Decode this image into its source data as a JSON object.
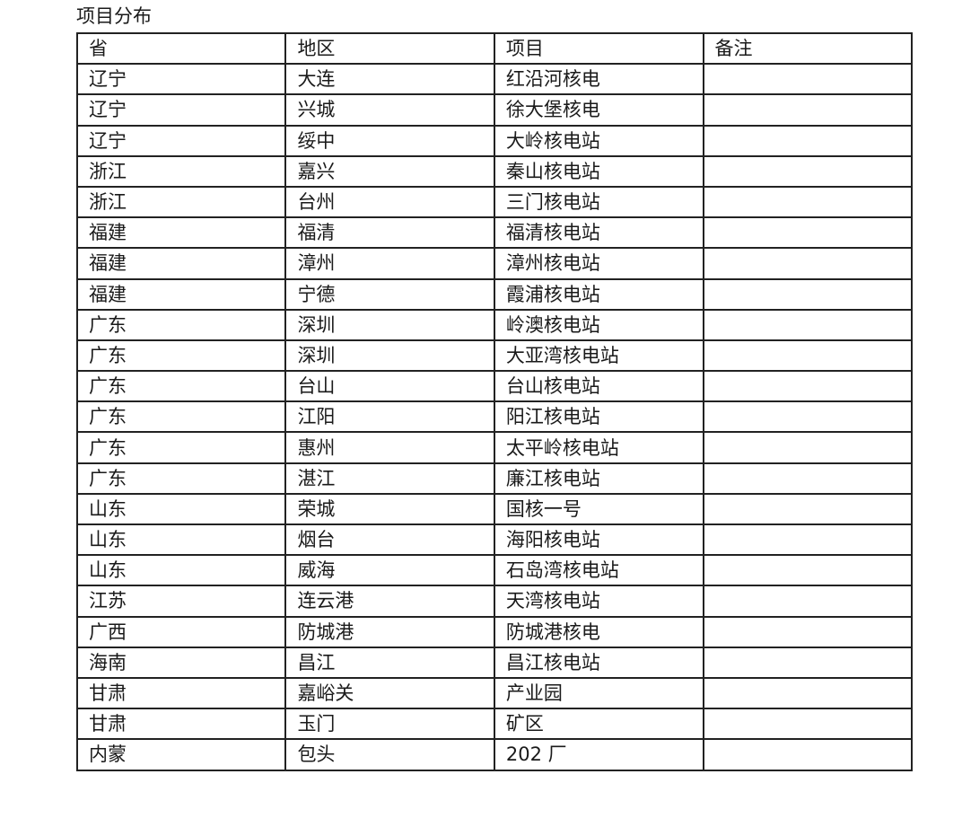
{
  "title": "项目分布",
  "table": {
    "headers": [
      "省",
      "地区",
      "项目",
      "备注"
    ],
    "rows": [
      [
        "辽宁",
        "大连",
        "红沿河核电",
        ""
      ],
      [
        "辽宁",
        "兴城",
        "徐大堡核电",
        ""
      ],
      [
        "辽宁",
        "绥中",
        "大岭核电站",
        ""
      ],
      [
        "浙江",
        "嘉兴",
        "秦山核电站",
        ""
      ],
      [
        "浙江",
        "台州",
        "三门核电站",
        ""
      ],
      [
        "福建",
        "福清",
        "福清核电站",
        ""
      ],
      [
        "福建",
        "漳州",
        "漳州核电站",
        ""
      ],
      [
        "福建",
        "宁德",
        "霞浦核电站",
        ""
      ],
      [
        "广东",
        "深圳",
        "岭澳核电站",
        ""
      ],
      [
        "广东",
        "深圳",
        "大亚湾核电站",
        ""
      ],
      [
        "广东",
        "台山",
        "台山核电站",
        ""
      ],
      [
        "广东",
        "江阳",
        "阳江核电站",
        ""
      ],
      [
        "广东",
        "惠州",
        "太平岭核电站",
        ""
      ],
      [
        "广东",
        "湛江",
        "廉江核电站",
        ""
      ],
      [
        "山东",
        "荣城",
        "国核一号",
        ""
      ],
      [
        "山东",
        "烟台",
        "海阳核电站",
        ""
      ],
      [
        "山东",
        "威海",
        "石岛湾核电站",
        ""
      ],
      [
        "江苏",
        "连云港",
        "天湾核电站",
        ""
      ],
      [
        "广西",
        "防城港",
        "防城港核电",
        ""
      ],
      [
        "海南",
        "昌江",
        "昌江核电站",
        ""
      ],
      [
        "甘肃",
        "嘉峪关",
        "产业园",
        ""
      ],
      [
        "甘肃",
        "玉门",
        "矿区",
        ""
      ],
      [
        "内蒙",
        "包头",
        "202 厂",
        ""
      ]
    ]
  }
}
